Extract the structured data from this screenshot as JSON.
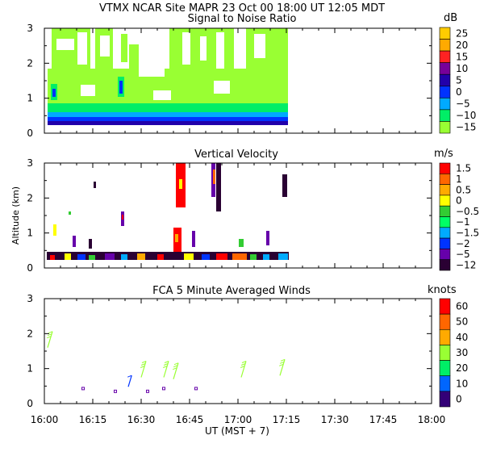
{
  "header": {
    "title": "VTMX   NCAR Site   MAPR 23 Oct 00   18:00 UT   12:05   MDT"
  },
  "axes": {
    "ylabel": "Altitude (km)",
    "xlabel": "UT    (MST + 7)",
    "x_ticks": [
      "16:00",
      "16:15",
      "16:30",
      "16:45",
      "17:00",
      "17:15",
      "17:30",
      "17:45",
      "18:00"
    ],
    "x_range_min": [
      0,
      120
    ],
    "y_range_km": [
      0,
      3
    ],
    "y_ticks": [
      "0",
      "1",
      "2",
      "3"
    ]
  },
  "chart_data": [
    {
      "type": "heatmap",
      "id": "snr",
      "title": "Signal to Noise Ratio",
      "unit": "dB",
      "xlabel": "",
      "ylabel": "",
      "xlim_min": [
        0,
        120
      ],
      "ylim_km": [
        0,
        3
      ],
      "data_extent_min": [
        1,
        76
      ],
      "legend": {
        "labels": [
          "25",
          "20",
          "15",
          "10",
          "5",
          "0",
          "−5",
          "−10",
          "−15"
        ],
        "colors": [
          "#ffcc00",
          "#ffaa00",
          "#ff2222",
          "#770099",
          "#2200aa",
          "#0033ff",
          "#00aaff",
          "#00ee66",
          "#99ff33"
        ]
      }
    },
    {
      "type": "heatmap",
      "id": "velocity",
      "title": "Vertical Velocity",
      "unit": "m/s",
      "xlabel": "",
      "ylabel": "Altitude (km)",
      "xlim_min": [
        0,
        120
      ],
      "ylim_km": [
        0,
        3
      ],
      "legend": {
        "labels": [
          "1.5",
          "1",
          "0.5",
          "0",
          "−0.5",
          "−1",
          "−1.5",
          "−2",
          "−5",
          "−12"
        ],
        "colors": [
          "#ff0000",
          "#ff6600",
          "#ffaa00",
          "#ffff00",
          "#33cc33",
          "#00ff66",
          "#00aaff",
          "#0033ff",
          "#6600aa",
          "#2a0033"
        ]
      }
    },
    {
      "type": "scatter",
      "id": "winds",
      "title": "FCA 5 Minute Averaged Winds",
      "unit": "knots",
      "xlabel": "UT    (MST + 7)",
      "ylabel": "",
      "xlim_min": [
        0,
        120
      ],
      "ylim_km": [
        0,
        3
      ],
      "legend": {
        "labels": [
          "60",
          "50",
          "40",
          "30",
          "20",
          "10",
          "0"
        ],
        "colors": [
          "#ff0000",
          "#ff6600",
          "#ffaa00",
          "#99ff33",
          "#00ee66",
          "#0066ff",
          "#330077"
        ]
      },
      "barbs": [
        {
          "t": 1,
          "alt": 1.6,
          "speed": 30
        },
        {
          "t": 12,
          "alt": 0.43,
          "speed": 0
        },
        {
          "t": 22,
          "alt": 0.35,
          "speed": 0
        },
        {
          "t": 26,
          "alt": 0.48,
          "speed": 10
        },
        {
          "t": 32,
          "alt": 0.35,
          "speed": 0
        },
        {
          "t": 30,
          "alt": 0.75,
          "speed": 30
        },
        {
          "t": 37,
          "alt": 0.43,
          "speed": 0
        },
        {
          "t": 37,
          "alt": 0.75,
          "speed": 30
        },
        {
          "t": 40,
          "alt": 0.7,
          "speed": 30
        },
        {
          "t": 47,
          "alt": 0.43,
          "speed": 0
        },
        {
          "t": 61,
          "alt": 0.75,
          "speed": 30
        },
        {
          "t": 73,
          "alt": 0.8,
          "speed": 30
        }
      ]
    }
  ]
}
